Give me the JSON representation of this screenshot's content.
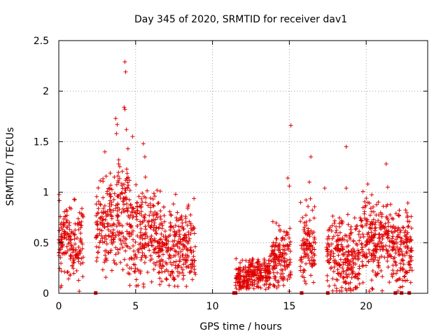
{
  "chart_data": {
    "type": "scatter",
    "title": "Day 345 of 2020, SRMTID for receiver dav1",
    "xlabel": "GPS time / hours",
    "ylabel": "SRMTID / TECUs",
    "xlim": [
      0,
      24
    ],
    "ylim": [
      0,
      2.5
    ],
    "xticks": [
      0,
      5,
      10,
      15,
      20
    ],
    "xtick_labels": [
      "0",
      "5",
      "10",
      "15",
      "20"
    ],
    "yticks": [
      0,
      0.5,
      1,
      1.5,
      2,
      2.5
    ],
    "ytick_labels": [
      "0",
      "0.5",
      "1",
      "1.5",
      "2",
      "2.5"
    ],
    "grid": true,
    "marker": "+",
    "color": "#e00000",
    "series": [
      {
        "name": "SRMTID dav1",
        "segments": [
          {
            "t_start": 0.0,
            "t_end": 1.6,
            "level": 0.5,
            "spread": 0.18
          },
          {
            "t_start": 2.4,
            "t_end": 3.6,
            "level": 0.65,
            "spread": 0.22
          },
          {
            "t_start": 3.6,
            "t_end": 4.6,
            "level": 0.85,
            "spread": 0.28
          },
          {
            "t_start": 4.6,
            "t_end": 6.5,
            "level": 0.6,
            "spread": 0.22
          },
          {
            "t_start": 6.5,
            "t_end": 8.9,
            "level": 0.45,
            "spread": 0.18
          },
          {
            "t_start": 11.5,
            "t_end": 12.3,
            "level": 0.15,
            "spread": 0.08
          },
          {
            "t_start": 12.3,
            "t_end": 13.8,
            "level": 0.2,
            "spread": 0.08
          },
          {
            "t_start": 13.8,
            "t_end": 15.1,
            "level": 0.35,
            "spread": 0.15
          },
          {
            "t_start": 15.7,
            "t_end": 16.7,
            "level": 0.45,
            "spread": 0.18
          },
          {
            "t_start": 17.4,
            "t_end": 18.5,
            "level": 0.4,
            "spread": 0.18
          },
          {
            "t_start": 18.5,
            "t_end": 19.6,
            "level": 0.3,
            "spread": 0.2
          },
          {
            "t_start": 19.6,
            "t_end": 21.6,
            "level": 0.55,
            "spread": 0.2
          },
          {
            "t_start": 21.6,
            "t_end": 23.0,
            "level": 0.45,
            "spread": 0.18
          }
        ],
        "outliers": [
          {
            "x": 4.3,
            "y": 2.29
          },
          {
            "x": 4.35,
            "y": 2.19
          },
          {
            "x": 4.25,
            "y": 1.84
          },
          {
            "x": 4.3,
            "y": 1.82
          },
          {
            "x": 3.7,
            "y": 1.73
          },
          {
            "x": 3.8,
            "y": 1.67
          },
          {
            "x": 4.4,
            "y": 1.62
          },
          {
            "x": 3.75,
            "y": 1.58
          },
          {
            "x": 4.8,
            "y": 1.55
          },
          {
            "x": 5.5,
            "y": 1.48
          },
          {
            "x": 3.0,
            "y": 1.4
          },
          {
            "x": 4.5,
            "y": 1.43
          },
          {
            "x": 5.6,
            "y": 1.35
          },
          {
            "x": 3.9,
            "y": 1.32
          },
          {
            "x": 15.1,
            "y": 1.66
          },
          {
            "x": 18.7,
            "y": 1.45
          },
          {
            "x": 16.4,
            "y": 1.35
          },
          {
            "x": 21.3,
            "y": 1.28
          },
          {
            "x": 14.9,
            "y": 1.14
          },
          {
            "x": 15.0,
            "y": 1.06
          },
          {
            "x": 16.3,
            "y": 1.1
          },
          {
            "x": 20.1,
            "y": 1.08
          },
          {
            "x": 17.3,
            "y": 1.04
          },
          {
            "x": 18.7,
            "y": 1.04
          },
          {
            "x": 21.4,
            "y": 1.05
          },
          {
            "x": 7.6,
            "y": 0.98
          },
          {
            "x": 6.6,
            "y": 1.01
          },
          {
            "x": 1.0,
            "y": 0.93
          },
          {
            "x": 15.0,
            "y": 0.02
          },
          {
            "x": 20.2,
            "y": 0.02
          }
        ],
        "zero_markers": [
          2.4,
          11.4,
          11.5,
          15.8,
          17.5,
          21.9,
          22.3,
          22.8
        ]
      }
    ]
  }
}
